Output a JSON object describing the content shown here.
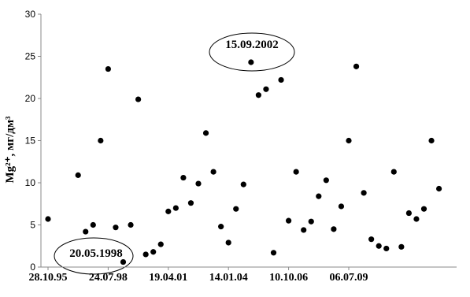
{
  "chart_data": {
    "type": "scatter",
    "ylabel": "Mg²⁺, мг/дм³",
    "categories": [
      "28.10.95",
      null,
      null,
      null,
      null,
      null,
      null,
      null,
      "24.07.98",
      null,
      null,
      null,
      null,
      null,
      null,
      null,
      "19.04.01",
      null,
      null,
      null,
      null,
      null,
      null,
      null,
      "14.01.04",
      null,
      null,
      null,
      null,
      null,
      null,
      null,
      "10.10.06",
      null,
      null,
      null,
      null,
      null,
      null,
      null,
      "06.07.09",
      null,
      null,
      null,
      null,
      null,
      null,
      null,
      null,
      null,
      null,
      null,
      null
    ],
    "values": [
      5.7,
      null,
      null,
      null,
      10.9,
      4.2,
      5.0,
      15.0,
      23.5,
      4.7,
      0.6,
      5.0,
      19.9,
      1.5,
      1.8,
      2.7,
      6.6,
      7.0,
      10.6,
      7.6,
      9.9,
      15.9,
      11.3,
      4.8,
      2.9,
      6.9,
      9.8,
      24.3,
      20.4,
      21.1,
      1.7,
      22.2,
      5.5,
      11.3,
      4.4,
      5.4,
      8.4,
      10.3,
      4.5,
      7.2,
      15.0,
      23.8,
      8.8,
      3.3,
      2.5,
      2.2,
      11.3,
      2.4,
      6.4,
      5.7,
      6.9,
      15.0,
      9.3
    ],
    "color": "#000000",
    "ylim": [
      0,
      30
    ],
    "yticks": [
      0,
      5,
      10,
      15,
      20,
      25,
      30
    ],
    "annotations": [
      "15.09.2002",
      "20.05.1998"
    ]
  }
}
